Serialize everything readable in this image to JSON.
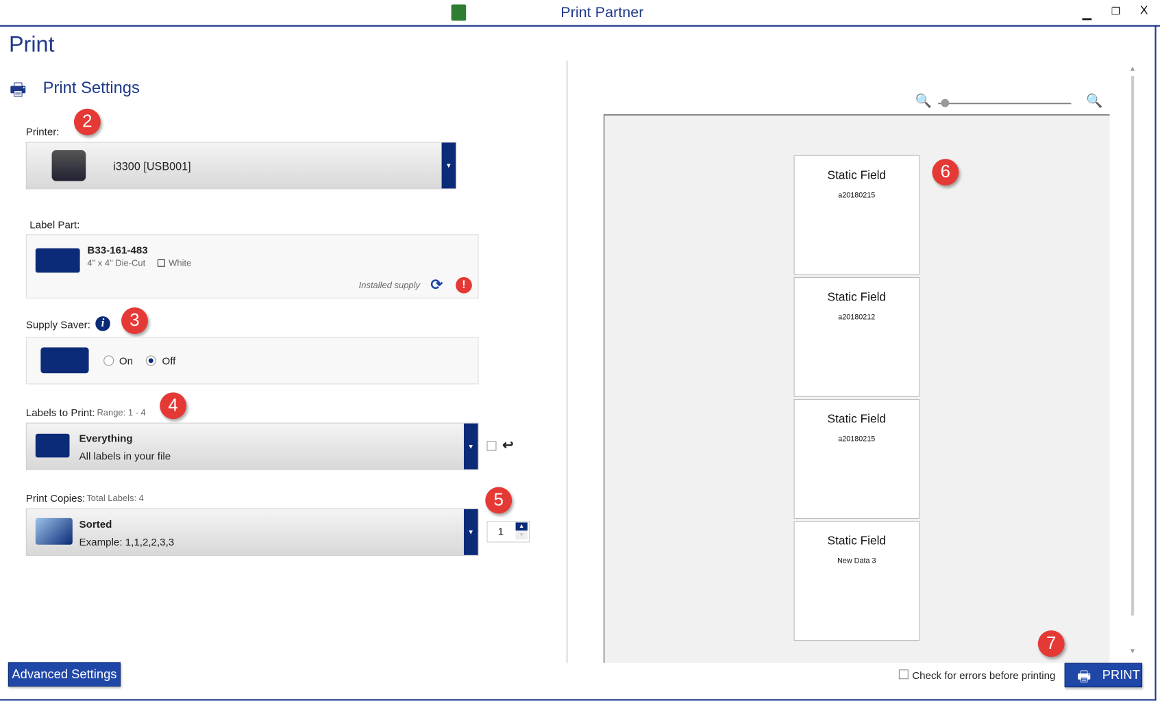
{
  "window": {
    "title": "Print Partner",
    "minimize_icon": "minimize-icon",
    "restore_icon": "restore-icon",
    "close_label": "X"
  },
  "page": {
    "title": "Print",
    "section_title": "Print Settings"
  },
  "printer": {
    "label": "Printer:",
    "value": "i3300 [USB001]"
  },
  "label_part": {
    "label": "Label Part:",
    "part_number": "B33-161-483",
    "size": "4\" x 4\"  Die-Cut",
    "color": "White",
    "status": "Installed supply"
  },
  "supply_saver": {
    "label": "Supply Saver:",
    "options": [
      "On",
      "Off"
    ],
    "selected": "Off"
  },
  "labels_to_print": {
    "label": "Labels to Print:",
    "range": "Range: 1 - 4",
    "title": "Everything",
    "description": "All labels in your file"
  },
  "print_copies": {
    "label": "Print Copies:",
    "total": "Total Labels: 4",
    "title": "Sorted",
    "description": "Example: 1,1,2,2,3,3",
    "copies": "1"
  },
  "callouts": [
    "2",
    "3",
    "4",
    "5",
    "6",
    "7"
  ],
  "preview": {
    "labels": [
      {
        "field": "Static Field",
        "data": "a20180215"
      },
      {
        "field": "Static Field",
        "data": "a20180212"
      },
      {
        "field": "Static Field",
        "data": "a20180215"
      },
      {
        "field": "Static Field",
        "data": "New Data 3"
      }
    ]
  },
  "footer": {
    "advanced_settings": "Advanced Settings",
    "check_errors": "Check for errors before printing",
    "print": "PRINT"
  },
  "colors": {
    "accent": "#1f3a8a",
    "dropdown_arrow": "#0b2a78",
    "callout": "#e53935",
    "button": "#1f47a8"
  }
}
